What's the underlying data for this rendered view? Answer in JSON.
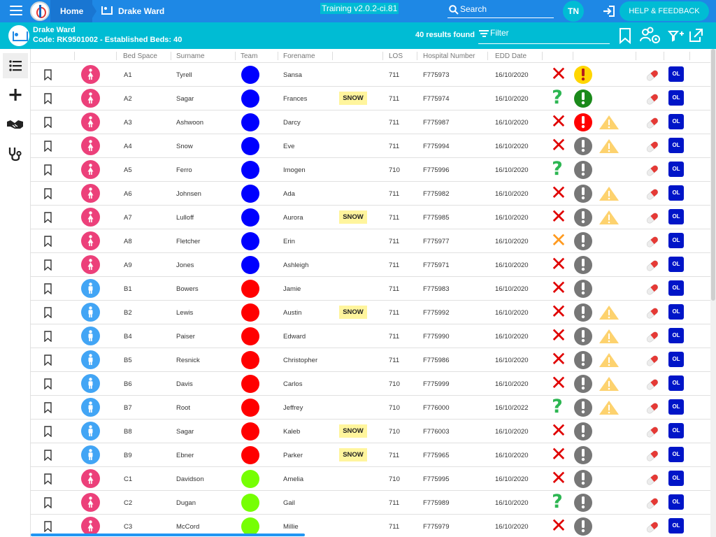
{
  "topbar": {
    "home_label": "Home",
    "ward_label": "Drake Ward",
    "version": "Training v2.0.2-ci.81",
    "search_label": "Search",
    "user_initials": "TN",
    "help_label": "HELP & FEEDBACK"
  },
  "subbar": {
    "ward_name": "Drake Ward",
    "ward_code": "Code: RK9501002 - Established Beds: 40",
    "results": "40 results found",
    "filter_label": "Filter"
  },
  "table": {
    "headers": [
      "Bed Space",
      "Surname",
      "Team",
      "Forename",
      "LOS",
      "Hospital Number",
      "EDD Date"
    ],
    "rows": [
      {
        "bed": "A1",
        "surname": "Tyrell",
        "forename": "Sansa",
        "tag": "",
        "los": "711",
        "hosp": "F775973",
        "edd": "16/10/2020",
        "gender": "female",
        "team": "#0000ff",
        "status": "x-red",
        "alert": "yellow",
        "warn": false
      },
      {
        "bed": "A2",
        "surname": "Sagar",
        "forename": "Frances",
        "tag": "SNOW",
        "los": "711",
        "hosp": "F775974",
        "edd": "16/10/2020",
        "gender": "female",
        "team": "#0000ff",
        "status": "q-green",
        "alert": "green",
        "warn": false
      },
      {
        "bed": "A3",
        "surname": "Ashwoon",
        "forename": "Darcy",
        "tag": "",
        "los": "711",
        "hosp": "F775987",
        "edd": "16/10/2020",
        "gender": "female",
        "team": "#0000ff",
        "status": "x-red",
        "alert": "red",
        "warn": true
      },
      {
        "bed": "A4",
        "surname": "Snow",
        "forename": "Eve",
        "tag": "",
        "los": "711",
        "hosp": "F775994",
        "edd": "16/10/2020",
        "gender": "female",
        "team": "#0000ff",
        "status": "x-red",
        "alert": "grey",
        "warn": true
      },
      {
        "bed": "A5",
        "surname": "Ferro",
        "forename": "Imogen",
        "tag": "",
        "los": "710",
        "hosp": "F775996",
        "edd": "16/10/2020",
        "gender": "female",
        "team": "#0000ff",
        "status": "q-green",
        "alert": "grey",
        "warn": false
      },
      {
        "bed": "A6",
        "surname": "Johnsen",
        "forename": "Ada",
        "tag": "",
        "los": "711",
        "hosp": "F775982",
        "edd": "16/10/2020",
        "gender": "female",
        "team": "#0000ff",
        "status": "x-red",
        "alert": "grey",
        "warn": true
      },
      {
        "bed": "A7",
        "surname": "Lulloff",
        "forename": "Aurora",
        "tag": "SNOW",
        "los": "711",
        "hosp": "F775985",
        "edd": "16/10/2020",
        "gender": "female",
        "team": "#0000ff",
        "status": "x-red",
        "alert": "grey",
        "warn": true
      },
      {
        "bed": "A8",
        "surname": "Fletcher",
        "forename": "Erin",
        "tag": "",
        "los": "711",
        "hosp": "F775977",
        "edd": "16/10/2020",
        "gender": "female",
        "team": "#0000ff",
        "status": "x-orange",
        "alert": "grey",
        "warn": false
      },
      {
        "bed": "A9",
        "surname": "Jones",
        "forename": "Ashleigh",
        "tag": "",
        "los": "711",
        "hosp": "F775971",
        "edd": "16/10/2020",
        "gender": "female",
        "team": "#0000ff",
        "status": "x-red",
        "alert": "grey",
        "warn": false
      },
      {
        "bed": "B1",
        "surname": "Bowers",
        "forename": "Jamie",
        "tag": "",
        "los": "711",
        "hosp": "F775983",
        "edd": "16/10/2020",
        "gender": "male",
        "team": "#ff0000",
        "status": "x-red",
        "alert": "grey",
        "warn": false
      },
      {
        "bed": "B2",
        "surname": "Lewis",
        "forename": "Austin",
        "tag": "SNOW",
        "los": "711",
        "hosp": "F775992",
        "edd": "16/10/2020",
        "gender": "male",
        "team": "#ff0000",
        "status": "x-red",
        "alert": "grey",
        "warn": true
      },
      {
        "bed": "B4",
        "surname": "Paiser",
        "forename": "Edward",
        "tag": "",
        "los": "711",
        "hosp": "F775990",
        "edd": "16/10/2020",
        "gender": "male",
        "team": "#ff0000",
        "status": "x-red",
        "alert": "grey",
        "warn": true
      },
      {
        "bed": "B5",
        "surname": "Resnick",
        "forename": "Christopher",
        "tag": "",
        "los": "711",
        "hosp": "F775986",
        "edd": "16/10/2020",
        "gender": "male",
        "team": "#ff0000",
        "status": "x-red",
        "alert": "grey",
        "warn": true
      },
      {
        "bed": "B6",
        "surname": "Davis",
        "forename": "Carlos",
        "tag": "",
        "los": "710",
        "hosp": "F775999",
        "edd": "16/10/2020",
        "gender": "male",
        "team": "#ff0000",
        "status": "x-red",
        "alert": "grey",
        "warn": true
      },
      {
        "bed": "B7",
        "surname": "Root",
        "forename": "Jeffrey",
        "tag": "",
        "los": "710",
        "hosp": "F776000",
        "edd": "16/10/2022",
        "gender": "male",
        "team": "#ff0000",
        "status": "q-green",
        "alert": "grey",
        "warn": true
      },
      {
        "bed": "B8",
        "surname": "Sagar",
        "forename": "Kaleb",
        "tag": "SNOW",
        "los": "710",
        "hosp": "F776003",
        "edd": "16/10/2020",
        "gender": "male",
        "team": "#ff0000",
        "status": "x-red",
        "alert": "grey",
        "warn": false
      },
      {
        "bed": "B9",
        "surname": "Ebner",
        "forename": "Parker",
        "tag": "SNOW",
        "los": "711",
        "hosp": "F775965",
        "edd": "16/10/2020",
        "gender": "male",
        "team": "#ff0000",
        "status": "x-red",
        "alert": "grey",
        "warn": false
      },
      {
        "bed": "C1",
        "surname": "Davidson",
        "forename": "Amelia",
        "tag": "",
        "los": "710",
        "hosp": "F775995",
        "edd": "16/10/2020",
        "gender": "female",
        "team": "#76ff03",
        "status": "x-red",
        "alert": "grey",
        "warn": false
      },
      {
        "bed": "C2",
        "surname": "Dugan",
        "forename": "Gail",
        "tag": "",
        "los": "711",
        "hosp": "F775989",
        "edd": "16/10/2020",
        "gender": "female",
        "team": "#76ff03",
        "status": "q-green",
        "alert": "grey",
        "warn": false
      },
      {
        "bed": "C3",
        "surname": "McCord",
        "forename": "Millie",
        "tag": "",
        "los": "711",
        "hosp": "F775979",
        "edd": "16/10/2020",
        "gender": "female",
        "team": "#76ff03",
        "status": "x-red",
        "alert": "grey",
        "warn": false
      }
    ]
  },
  "labels": {
    "order_label": "OL",
    "status_x": "✕",
    "status_q": "?"
  },
  "colors": {
    "primary": "#1e88e5",
    "accent": "#00bcd4",
    "female": "#ec407a",
    "male": "#42a5f5",
    "alert_yellow": "#ffd600",
    "alert_green": "#1b8a1b",
    "alert_red": "#ff0000",
    "alert_grey": "#777777",
    "status_red": "#e00000",
    "status_orange": "#ff9a1f"
  }
}
